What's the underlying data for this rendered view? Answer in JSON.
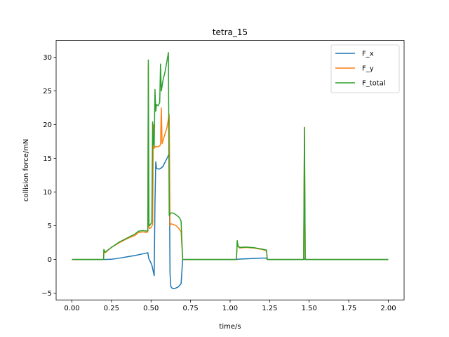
{
  "chart_data": {
    "type": "line",
    "title": "tetra_15",
    "xlabel": "time/s",
    "ylabel": "collision force/mN",
    "xlim": [
      -0.1,
      2.1
    ],
    "ylim": [
      -6,
      32.5
    ],
    "xticks": [
      0.0,
      0.25,
      0.5,
      0.75,
      1.0,
      1.25,
      1.5,
      1.75,
      2.0
    ],
    "xtick_labels": [
      "0.00",
      "0.25",
      "0.50",
      "0.75",
      "1.00",
      "1.25",
      "1.50",
      "1.75",
      "2.00"
    ],
    "yticks": [
      -5,
      0,
      5,
      10,
      15,
      20,
      25,
      30
    ],
    "ytick_labels": [
      "−5",
      "0",
      "5",
      "10",
      "15",
      "20",
      "25",
      "30"
    ],
    "grid": false,
    "legend": "top-right",
    "series": [
      {
        "name": "F_x",
        "color": "#1f77b4",
        "points": [
          [
            0,
            0
          ],
          [
            0.2,
            0
          ],
          [
            0.25,
            0.03
          ],
          [
            0.3,
            0.2
          ],
          [
            0.35,
            0.4
          ],
          [
            0.4,
            0.6
          ],
          [
            0.45,
            0.85
          ],
          [
            0.48,
            1.0
          ],
          [
            0.485,
            0.2
          ],
          [
            0.495,
            -0.3
          ],
          [
            0.505,
            -0.8
          ],
          [
            0.52,
            -2.4
          ],
          [
            0.525,
            8.5
          ],
          [
            0.53,
            14.5
          ],
          [
            0.535,
            13.5
          ],
          [
            0.55,
            13.4
          ],
          [
            0.56,
            13.5
          ],
          [
            0.575,
            13.8
          ],
          [
            0.59,
            14.5
          ],
          [
            0.605,
            15.2
          ],
          [
            0.615,
            15.7
          ],
          [
            0.62,
            -2
          ],
          [
            0.625,
            -4.0
          ],
          [
            0.635,
            -4.3
          ],
          [
            0.65,
            -4.3
          ],
          [
            0.67,
            -4.1
          ],
          [
            0.69,
            -3.6
          ],
          [
            0.7,
            0
          ],
          [
            1.04,
            0
          ],
          [
            1.05,
            0.05
          ],
          [
            1.1,
            0.1
          ],
          [
            1.2,
            0.2
          ],
          [
            1.23,
            0.2
          ],
          [
            1.235,
            0
          ],
          [
            1.467,
            0
          ],
          [
            1.47,
            0.1
          ],
          [
            1.475,
            0
          ],
          [
            2.0,
            0
          ]
        ]
      },
      {
        "name": "F_y",
        "color": "#ff7f0e",
        "points": [
          [
            0,
            0
          ],
          [
            0.2,
            0
          ],
          [
            0.202,
            1.4
          ],
          [
            0.205,
            1.2
          ],
          [
            0.21,
            1.0
          ],
          [
            0.25,
            1.8
          ],
          [
            0.3,
            2.5
          ],
          [
            0.35,
            3.1
          ],
          [
            0.4,
            3.6
          ],
          [
            0.42,
            4.0
          ],
          [
            0.45,
            4.1
          ],
          [
            0.47,
            4.0
          ],
          [
            0.48,
            4.1
          ],
          [
            0.483,
            28.8
          ],
          [
            0.485,
            5.0
          ],
          [
            0.49,
            4.6
          ],
          [
            0.5,
            4.7
          ],
          [
            0.51,
            5.2
          ],
          [
            0.515,
            20.0
          ],
          [
            0.52,
            16.5
          ],
          [
            0.53,
            16.8
          ],
          [
            0.54,
            16.7
          ],
          [
            0.55,
            16.8
          ],
          [
            0.56,
            17.0
          ],
          [
            0.565,
            22.5
          ],
          [
            0.57,
            17.2
          ],
          [
            0.58,
            18.0
          ],
          [
            0.6,
            19.5
          ],
          [
            0.615,
            21.5
          ],
          [
            0.62,
            5.0
          ],
          [
            0.625,
            5.3
          ],
          [
            0.64,
            5.2
          ],
          [
            0.66,
            5.0
          ],
          [
            0.68,
            4.5
          ],
          [
            0.69,
            4.1
          ],
          [
            0.7,
            0
          ],
          [
            1.04,
            0
          ],
          [
            1.045,
            2.7
          ],
          [
            1.05,
            1.9
          ],
          [
            1.06,
            1.7
          ],
          [
            1.1,
            1.8
          ],
          [
            1.15,
            1.7
          ],
          [
            1.2,
            1.5
          ],
          [
            1.23,
            1.3
          ],
          [
            1.235,
            0
          ],
          [
            1.465,
            0
          ],
          [
            1.47,
            19.6
          ],
          [
            1.475,
            0
          ],
          [
            2.0,
            0
          ]
        ]
      },
      {
        "name": "F_total",
        "color": "#2ca02c",
        "points": [
          [
            0,
            0
          ],
          [
            0.2,
            0
          ],
          [
            0.202,
            1.5
          ],
          [
            0.205,
            1.3
          ],
          [
            0.21,
            1.1
          ],
          [
            0.25,
            1.8
          ],
          [
            0.3,
            2.6
          ],
          [
            0.35,
            3.2
          ],
          [
            0.4,
            3.8
          ],
          [
            0.42,
            4.2
          ],
          [
            0.45,
            4.3
          ],
          [
            0.47,
            4.2
          ],
          [
            0.48,
            4.3
          ],
          [
            0.483,
            29.6
          ],
          [
            0.487,
            5.2
          ],
          [
            0.49,
            5.0
          ],
          [
            0.505,
            5.5
          ],
          [
            0.51,
            20.4
          ],
          [
            0.515,
            17.2
          ],
          [
            0.52,
            16.8
          ],
          [
            0.525,
            25.2
          ],
          [
            0.53,
            22.0
          ],
          [
            0.535,
            23.0
          ],
          [
            0.545,
            22.8
          ],
          [
            0.555,
            23.3
          ],
          [
            0.56,
            29.0
          ],
          [
            0.565,
            25.0
          ],
          [
            0.575,
            26.5
          ],
          [
            0.59,
            28.0
          ],
          [
            0.61,
            30.7
          ],
          [
            0.615,
            6.5
          ],
          [
            0.625,
            6.9
          ],
          [
            0.64,
            6.9
          ],
          [
            0.66,
            6.6
          ],
          [
            0.68,
            6.2
          ],
          [
            0.69,
            5.7
          ],
          [
            0.7,
            0
          ],
          [
            1.04,
            0
          ],
          [
            1.045,
            2.8
          ],
          [
            1.05,
            2.0
          ],
          [
            1.06,
            1.8
          ],
          [
            1.1,
            1.85
          ],
          [
            1.15,
            1.75
          ],
          [
            1.2,
            1.55
          ],
          [
            1.23,
            1.4
          ],
          [
            1.235,
            0
          ],
          [
            1.465,
            0
          ],
          [
            1.47,
            19.6
          ],
          [
            1.475,
            0
          ],
          [
            2.0,
            0
          ]
        ]
      }
    ]
  }
}
